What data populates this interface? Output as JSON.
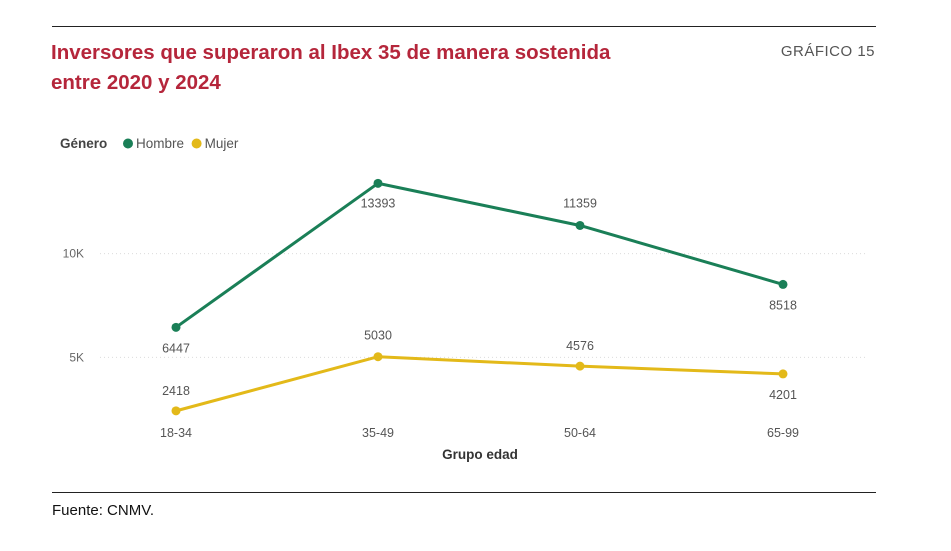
{
  "header": {
    "title_line1": "Inversores que superaron al Ibex 35 de manera sostenida",
    "title_line2": "entre 2020 y 2024",
    "chart_number": "GRÁFICO 15"
  },
  "footer": {
    "source": "Fuente: CNMV."
  },
  "colors": {
    "hombre": "#1a7f57",
    "mujer": "#e3b919",
    "title": "#b5263b"
  },
  "chart_data": {
    "type": "line",
    "title": "Inversores que superaron al Ibex 35 de manera sostenida entre 2020 y 2024",
    "xlabel": "Grupo edad",
    "ylabel": "",
    "categories": [
      "18-34",
      "35-49",
      "50-64",
      "65-99"
    ],
    "series": [
      {
        "name": "Hombre",
        "values": [
          6447,
          13393,
          11359,
          8518
        ],
        "labels": [
          "6447",
          "13393",
          "11359",
          "8518"
        ]
      },
      {
        "name": "Mujer",
        "values": [
          2418,
          5030,
          4576,
          4201
        ],
        "labels": [
          "2418",
          "5030",
          "4576",
          "4201"
        ]
      }
    ],
    "legend_title": "Género",
    "legend_position": "top-left",
    "y_ticks": [
      5000,
      10000
    ],
    "y_tick_labels": [
      "5K",
      "10K"
    ],
    "ylim": [
      0,
      15000
    ],
    "grid": true
  }
}
